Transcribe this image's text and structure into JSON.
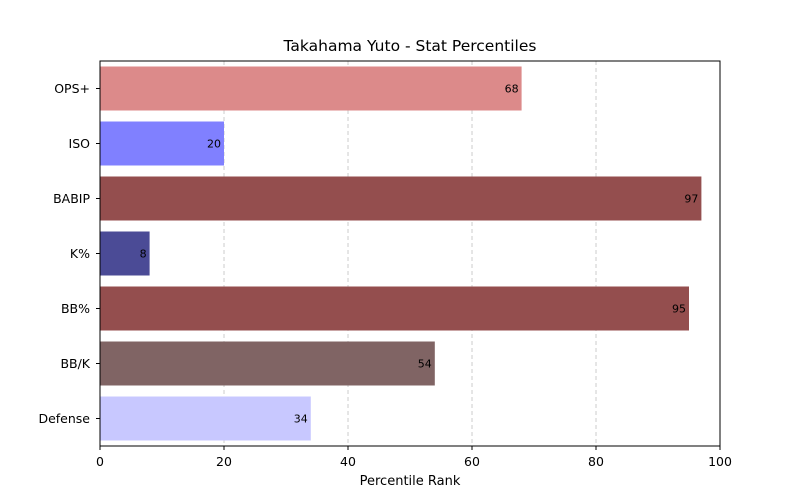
{
  "chart_data": {
    "type": "bar",
    "orientation": "horizontal",
    "title": "Takahama Yuto - Stat Percentiles",
    "xlabel": "Percentile Rank",
    "ylabel": "",
    "xlim": [
      0,
      100
    ],
    "xticks": [
      0,
      20,
      40,
      60,
      80,
      100
    ],
    "grid": "x-dashed",
    "categories": [
      "OPS+",
      "ISO",
      "BABIP",
      "K%",
      "BB%",
      "BB/K",
      "Defense"
    ],
    "values": [
      68,
      20,
      97,
      8,
      95,
      54,
      34
    ],
    "colors": [
      "#dc8a8a",
      "#8080ff",
      "#944e4e",
      "#4b4b96",
      "#944e4e",
      "#806464",
      "#c8c8ff"
    ]
  }
}
